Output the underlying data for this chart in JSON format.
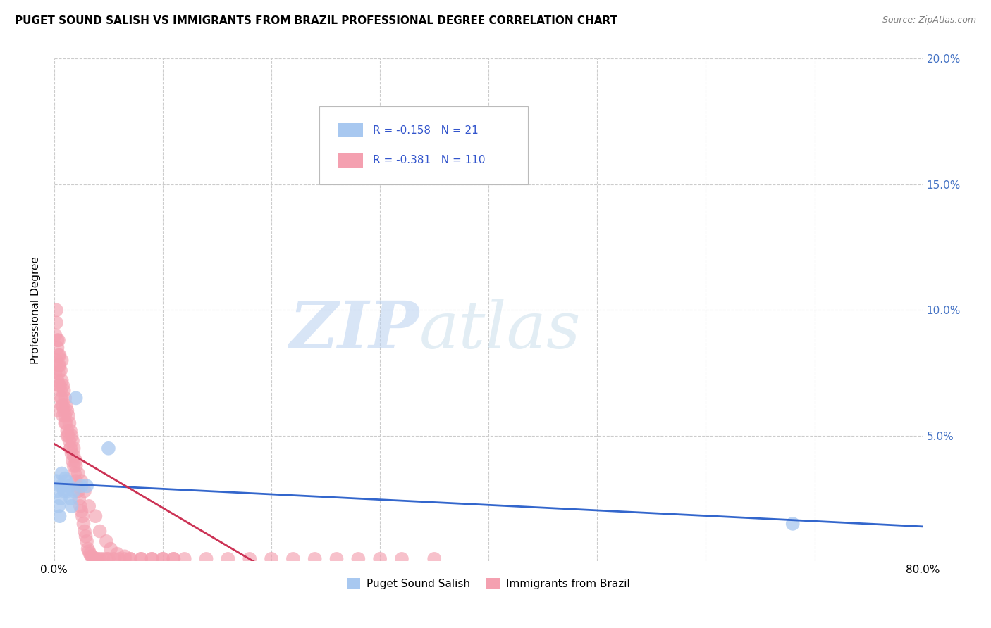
{
  "title": "PUGET SOUND SALISH VS IMMIGRANTS FROM BRAZIL PROFESSIONAL DEGREE CORRELATION CHART",
  "source": "Source: ZipAtlas.com",
  "ylabel": "Professional Degree",
  "xlim": [
    0.0,
    0.8
  ],
  "ylim": [
    -0.005,
    0.205
  ],
  "plot_ylim": [
    0.0,
    0.2
  ],
  "legend_r1": "-0.158",
  "legend_n1": "21",
  "legend_r2": "-0.381",
  "legend_n2": "110",
  "series1_label": "Puget Sound Salish",
  "series2_label": "Immigrants from Brazil",
  "series1_color": "#a8c8f0",
  "series2_color": "#f4a0b0",
  "trendline1_color": "#3366cc",
  "trendline2_color": "#cc3355",
  "watermark_zip": "ZIP",
  "watermark_atlas": "atlas",
  "background_color": "#ffffff",
  "series1_x": [
    0.002,
    0.003,
    0.004,
    0.005,
    0.006,
    0.006,
    0.007,
    0.008,
    0.009,
    0.01,
    0.011,
    0.012,
    0.014,
    0.015,
    0.016,
    0.018,
    0.02,
    0.025,
    0.03,
    0.68,
    0.05
  ],
  "series1_y": [
    0.032,
    0.028,
    0.022,
    0.018,
    0.03,
    0.025,
    0.035,
    0.03,
    0.028,
    0.033,
    0.032,
    0.028,
    0.03,
    0.025,
    0.022,
    0.028,
    0.065,
    0.03,
    0.03,
    0.015,
    0.045
  ],
  "series2_x": [
    0.001,
    0.001,
    0.002,
    0.002,
    0.003,
    0.003,
    0.004,
    0.004,
    0.005,
    0.005,
    0.006,
    0.006,
    0.007,
    0.007,
    0.007,
    0.008,
    0.008,
    0.009,
    0.009,
    0.01,
    0.01,
    0.011,
    0.011,
    0.012,
    0.012,
    0.013,
    0.013,
    0.014,
    0.014,
    0.015,
    0.015,
    0.016,
    0.016,
    0.017,
    0.017,
    0.018,
    0.018,
    0.019,
    0.02,
    0.02,
    0.021,
    0.022,
    0.022,
    0.023,
    0.024,
    0.025,
    0.026,
    0.027,
    0.028,
    0.029,
    0.03,
    0.031,
    0.032,
    0.033,
    0.034,
    0.035,
    0.036,
    0.038,
    0.04,
    0.042,
    0.045,
    0.048,
    0.05,
    0.055,
    0.06,
    0.065,
    0.07,
    0.08,
    0.09,
    0.1,
    0.11,
    0.12,
    0.14,
    0.16,
    0.18,
    0.2,
    0.22,
    0.24,
    0.26,
    0.28,
    0.3,
    0.32,
    0.35,
    0.002,
    0.003,
    0.004,
    0.005,
    0.003,
    0.004,
    0.005,
    0.006,
    0.007,
    0.008,
    0.01,
    0.012,
    0.015,
    0.018,
    0.02,
    0.025,
    0.028,
    0.032,
    0.038,
    0.042,
    0.048,
    0.052,
    0.058,
    0.065,
    0.07,
    0.08,
    0.09,
    0.1,
    0.11
  ],
  "series2_y": [
    0.075,
    0.09,
    0.08,
    0.1,
    0.072,
    0.085,
    0.078,
    0.088,
    0.07,
    0.082,
    0.068,
    0.076,
    0.065,
    0.072,
    0.08,
    0.062,
    0.07,
    0.06,
    0.068,
    0.058,
    0.065,
    0.055,
    0.062,
    0.052,
    0.06,
    0.05,
    0.058,
    0.048,
    0.055,
    0.045,
    0.052,
    0.043,
    0.05,
    0.04,
    0.048,
    0.038,
    0.045,
    0.035,
    0.032,
    0.04,
    0.03,
    0.028,
    0.035,
    0.025,
    0.022,
    0.02,
    0.018,
    0.015,
    0.012,
    0.01,
    0.008,
    0.005,
    0.004,
    0.003,
    0.002,
    0.002,
    0.001,
    0.001,
    0.001,
    0.001,
    0.001,
    0.001,
    0.001,
    0.001,
    0.001,
    0.001,
    0.001,
    0.001,
    0.001,
    0.001,
    0.001,
    0.001,
    0.001,
    0.001,
    0.001,
    0.001,
    0.001,
    0.001,
    0.001,
    0.001,
    0.001,
    0.001,
    0.001,
    0.095,
    0.06,
    0.082,
    0.078,
    0.088,
    0.075,
    0.07,
    0.065,
    0.062,
    0.058,
    0.055,
    0.05,
    0.045,
    0.042,
    0.038,
    0.032,
    0.028,
    0.022,
    0.018,
    0.012,
    0.008,
    0.005,
    0.003,
    0.002,
    0.001,
    0.001,
    0.001,
    0.001,
    0.001
  ]
}
